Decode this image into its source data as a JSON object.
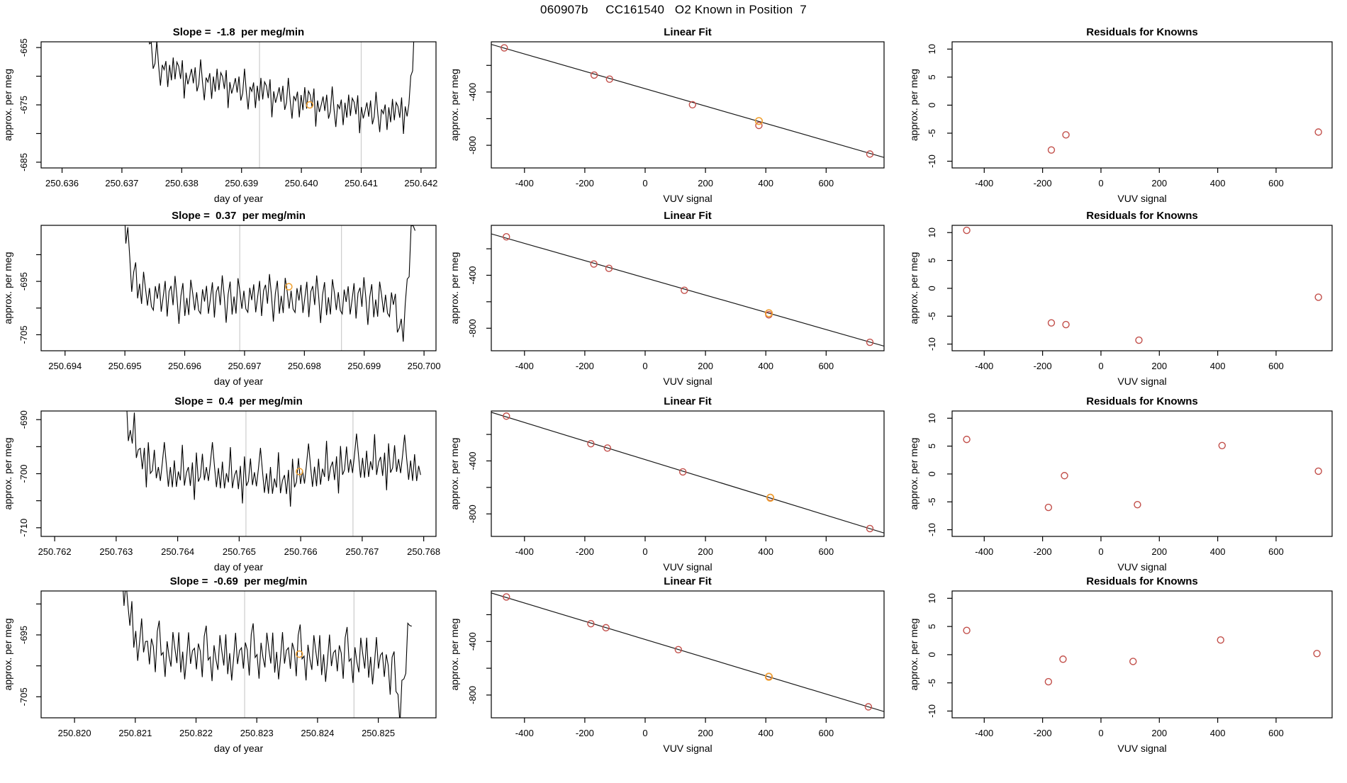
{
  "header": {
    "title": "060907b     CC161540   O2 Known in Position  7"
  },
  "axis": {
    "x_timeseries": "day of year",
    "x_signal": "VUV signal",
    "y": "approx. per meg"
  },
  "colors": {
    "series": "#000000",
    "fit_line": "#1a1a1a",
    "known_point": "#C24F4A",
    "highlight_point": "#F0A030",
    "marker_line": "#CCCCCC"
  },
  "chart_data": {
    "patterns": {
      "P1": [
        0.1,
        1.4,
        -0.9,
        0.6,
        -1.6,
        0.3,
        1.8,
        -0.3,
        -1.9,
        1.0,
        -0.6,
        1.3,
        -1.2,
        0.5,
        -1.1,
        1.7,
        -1.5,
        0.7,
        0.1,
        -1.3,
        0.9,
        -1.7,
        1.1,
        -0.4
      ],
      "P2": [
        -0.2,
        1.1,
        -1.4,
        1.6,
        -0.5,
        -1.8,
        0.8,
        1.9,
        -1.0,
        0.4,
        -1.6,
        1.2,
        0.2,
        -0.9,
        1.5,
        -0.3,
        -1.2,
        1.8,
        -0.7,
        0.9,
        -1.9,
        0.6,
        1.3,
        -1.1
      ]
    },
    "rows": [
      {
        "timeseries": {
          "type": "line",
          "title": "Slope =  -1.8  per meg/min",
          "slope": -1.8,
          "xlabel": "day of year",
          "ylabel": "approx. per meg",
          "xlim": [
            250.63565,
            250.64225
          ],
          "ylim": [
            -686,
            -664
          ],
          "xticks": [
            250.636,
            250.637,
            250.638,
            250.639,
            250.64,
            250.641,
            250.642
          ],
          "yticks_major": [
            -665,
            -675,
            -685
          ],
          "yticks_minor": [
            -670,
            -680
          ],
          "marker_lines": [
            250.6393,
            250.641
          ],
          "highlight": {
            "x": 250.64014,
            "y": -675.0
          },
          "series": {
            "x0": 250.6374,
            "x1": 250.64195,
            "n": 150,
            "amp": 1.7,
            "phase": 0,
            "pattern": "P1",
            "trend": [
              [
                0,
                -658
              ],
              [
                0.02,
                -666
              ],
              [
                0.06,
                -668.5
              ],
              [
                0.15,
                -670
              ],
              [
                0.3,
                -671.5
              ],
              [
                0.5,
                -673.5
              ],
              [
                0.65,
                -675
              ],
              [
                0.8,
                -676
              ],
              [
                0.93,
                -676.5
              ],
              [
                0.965,
                -675.5
              ],
              [
                0.98,
                -668
              ],
              [
                1,
                -652
              ]
            ]
          }
        },
        "linear_fit": {
          "type": "scatter",
          "title": "Linear Fit",
          "xlabel": "VUV signal",
          "ylabel": "approx. per meg",
          "xlim": [
            -510,
            792
          ],
          "ylim": [
            -970,
            -23
          ],
          "xticks": [
            -400,
            -200,
            0,
            200,
            400,
            600
          ],
          "yticks_major": [
            -400,
            -800
          ],
          "yticks_minor": [
            -200,
            -600
          ],
          "line": {
            "intercept": -375,
            "slope": -0.652
          },
          "points": [
            {
              "x": -467,
              "r": 2
            },
            {
              "x": -169,
              "r": -8
            },
            {
              "x": -118,
              "r": -5.3
            },
            {
              "x": 157,
              "r": -18
            },
            {
              "x": 377,
              "r": -30
            },
            {
              "x": 745,
              "r": -4.8
            }
          ],
          "highlight": {
            "x": 377,
            "r": 3
          }
        },
        "residuals": {
          "type": "scatter",
          "title": "Residuals for Knowns",
          "xlabel": "VUV signal",
          "ylabel": "approx. per meg",
          "xlim": [
            -510,
            792
          ],
          "ylim": [
            -11.2,
            11.3
          ],
          "xticks": [
            -400,
            -200,
            0,
            200,
            400,
            600
          ],
          "yticks_major": [
            -10,
            -5,
            0,
            5,
            10
          ],
          "yticks_minor": [],
          "points": [
            {
              "x": -170,
              "y": -8.0
            },
            {
              "x": -120,
              "y": -5.3
            },
            {
              "x": 745,
              "y": -4.8
            }
          ]
        }
      },
      {
        "timeseries": {
          "type": "line",
          "title": "Slope =  0.37  per meg/min",
          "slope": 0.37,
          "xlabel": "day of year",
          "ylabel": "approx. per meg",
          "xlim": [
            250.6936,
            250.7002
          ],
          "ylim": [
            -708,
            -684.5
          ],
          "xticks": [
            250.694,
            250.695,
            250.696,
            250.697,
            250.698,
            250.699,
            250.7
          ],
          "yticks_major": [
            -695,
            -705
          ],
          "yticks_minor": [
            -690,
            -700
          ],
          "marker_lines": [
            250.69692,
            250.69862
          ],
          "highlight": {
            "x": 250.69774,
            "y": -696.0
          },
          "series": {
            "x0": 250.69495,
            "x1": 250.69985,
            "n": 150,
            "amp": 2.0,
            "phase": 0,
            "pattern": "P2",
            "trend": [
              [
                0,
                -676
              ],
              [
                0.015,
                -688
              ],
              [
                0.04,
                -694
              ],
              [
                0.08,
                -697.5
              ],
              [
                0.2,
                -698.5
              ],
              [
                0.5,
                -698
              ],
              [
                0.8,
                -698.5
              ],
              [
                0.93,
                -699
              ],
              [
                0.952,
                -705.5
              ],
              [
                0.968,
                -700
              ],
              [
                1,
                -681
              ]
            ]
          }
        },
        "linear_fit": {
          "type": "scatter",
          "title": "Linear Fit",
          "xlabel": "VUV signal",
          "ylabel": "approx. per meg",
          "xlim": [
            -510,
            792
          ],
          "ylim": [
            -970,
            -23
          ],
          "xticks": [
            -400,
            -200,
            0,
            200,
            400,
            600
          ],
          "yticks_major": [
            -400,
            -800
          ],
          "yticks_minor": [
            -200,
            -600
          ],
          "line": {
            "intercept": -419.5,
            "slope": -0.651
          },
          "points": [
            {
              "x": -460,
              "r": 10.4
            },
            {
              "x": -170,
              "r": -6.2
            },
            {
              "x": -120,
              "r": -6.5
            },
            {
              "x": 130,
              "r": -9.3
            },
            {
              "x": 410,
              "r": -12
            },
            {
              "x": 745,
              "r": -1.6
            }
          ],
          "highlight": {
            "x": 410,
            "r": 0
          }
        },
        "residuals": {
          "type": "scatter",
          "title": "Residuals for Knowns",
          "xlabel": "VUV signal",
          "ylabel": "approx. per meg",
          "xlim": [
            -510,
            792
          ],
          "ylim": [
            -11.2,
            11.3
          ],
          "xticks": [
            -400,
            -200,
            0,
            200,
            400,
            600
          ],
          "yticks_major": [
            -10,
            -5,
            0,
            5,
            10
          ],
          "yticks_minor": [],
          "points": [
            {
              "x": -460,
              "y": 10.4
            },
            {
              "x": -170,
              "y": -6.2
            },
            {
              "x": -120,
              "y": -6.5
            },
            {
              "x": 130,
              "y": -9.3
            },
            {
              "x": 745,
              "y": -1.6
            }
          ]
        }
      },
      {
        "timeseries": {
          "type": "line",
          "title": "Slope =  0.4  per meg/min",
          "slope": 0.4,
          "xlabel": "day of year",
          "ylabel": "approx. per meg",
          "xlim": [
            250.76178,
            250.7682
          ],
          "ylim": [
            -711.6,
            -688.4
          ],
          "xticks": [
            250.762,
            250.763,
            250.764,
            250.765,
            250.766,
            250.767,
            250.768
          ],
          "yticks_major": [
            -690,
            -700,
            -710
          ],
          "yticks_minor": [
            -695,
            -705
          ],
          "marker_lines": [
            250.76511,
            250.76685
          ],
          "highlight": {
            "x": 250.76598,
            "y": -699.6
          },
          "series": {
            "x0": 250.7631,
            "x1": 250.76795,
            "n": 150,
            "amp": 2.2,
            "phase": 9,
            "pattern": "P1",
            "trend": [
              [
                0,
                -682
              ],
              [
                0.02,
                -691
              ],
              [
                0.06,
                -696
              ],
              [
                0.12,
                -699.5
              ],
              [
                0.3,
                -699.5
              ],
              [
                0.45,
                -700.5
              ],
              [
                0.55,
                -701
              ],
              [
                0.7,
                -698.5
              ],
              [
                0.85,
                -697.5
              ],
              [
                1,
                -698.5
              ]
            ]
          }
        },
        "linear_fit": {
          "type": "scatter",
          "title": "Linear Fit",
          "xlabel": "VUV signal",
          "ylabel": "approx. per meg",
          "xlim": [
            -510,
            792
          ],
          "ylim": [
            -970,
            -23
          ],
          "xticks": [
            -400,
            -200,
            0,
            200,
            400,
            600
          ],
          "yticks_major": [
            -400,
            -800
          ],
          "yticks_minor": [
            -200,
            -600
          ],
          "line": {
            "intercept": -390,
            "slope": -0.7
          },
          "points": [
            {
              "x": -460,
              "r": 6.2
            },
            {
              "x": -180,
              "r": -6.0
            },
            {
              "x": -125,
              "r": -0.3
            },
            {
              "x": 125,
              "r": -5.5
            },
            {
              "x": 415,
              "r": 5.1
            },
            {
              "x": 745,
              "r": 0.5
            }
          ],
          "highlight": {
            "x": 415,
            "r": 2
          }
        },
        "residuals": {
          "type": "scatter",
          "title": "Residuals for Knowns",
          "xlabel": "VUV signal",
          "ylabel": "approx. per meg",
          "xlim": [
            -510,
            792
          ],
          "ylim": [
            -11.2,
            11.3
          ],
          "xticks": [
            -400,
            -200,
            0,
            200,
            400,
            600
          ],
          "yticks_major": [
            -10,
            -5,
            0,
            5,
            10
          ],
          "yticks_minor": [],
          "points": [
            {
              "x": -460,
              "y": 6.2
            },
            {
              "x": -180,
              "y": -6.0
            },
            {
              "x": -125,
              "y": -0.3
            },
            {
              "x": 125,
              "y": -5.5
            },
            {
              "x": 415,
              "y": 5.1
            },
            {
              "x": 745,
              "y": 0.5
            }
          ]
        }
      },
      {
        "timeseries": {
          "type": "line",
          "title": "Slope =  -0.69  per meg/min",
          "slope": -0.69,
          "xlabel": "day of year",
          "ylabel": "approx. per meg",
          "xlim": [
            250.81945,
            250.82595
          ],
          "ylim": [
            -708.4,
            -687.9
          ],
          "xticks": [
            250.82,
            250.821,
            250.822,
            250.823,
            250.824,
            250.825
          ],
          "yticks_major": [
            -695,
            -705
          ],
          "yticks_minor": [
            -690,
            -700
          ],
          "marker_lines": [
            250.8228,
            250.8246
          ],
          "highlight": {
            "x": 250.8237,
            "y": -698.1
          },
          "series": {
            "x0": 250.82075,
            "x1": 250.82555,
            "n": 150,
            "amp": 2.0,
            "phase": 11,
            "pattern": "P2",
            "trend": [
              [
                0,
                -680
              ],
              [
                0.015,
                -689
              ],
              [
                0.05,
                -694.5
              ],
              [
                0.1,
                -697.5
              ],
              [
                0.3,
                -698.5
              ],
              [
                0.5,
                -698
              ],
              [
                0.7,
                -698.5
              ],
              [
                0.9,
                -699
              ],
              [
                0.935,
                -702
              ],
              [
                0.962,
                -705.8
              ],
              [
                0.985,
                -697
              ],
              [
                1,
                -692
              ]
            ]
          }
        },
        "linear_fit": {
          "type": "scatter",
          "title": "Linear Fit",
          "xlabel": "VUV signal",
          "ylabel": "approx. per meg",
          "xlim": [
            -510,
            792
          ],
          "ylim": [
            -970,
            -23
          ],
          "xticks": [
            -400,
            -200,
            0,
            200,
            400,
            600
          ],
          "yticks_major": [
            -400,
            -800
          ],
          "yticks_minor": [
            -200,
            -600
          ],
          "line": {
            "intercept": -385,
            "slope": -0.68
          },
          "points": [
            {
              "x": -460,
              "r": 4.3
            },
            {
              "x": -180,
              "r": -4.8
            },
            {
              "x": -130,
              "r": -0.8
            },
            {
              "x": 110,
              "r": -1.2
            },
            {
              "x": 410,
              "r": 2.6
            },
            {
              "x": 740,
              "r": 0.2
            }
          ],
          "highlight": {
            "x": 410,
            "r": 0
          }
        },
        "residuals": {
          "type": "scatter",
          "title": "Residuals for Knowns",
          "xlabel": "VUV signal",
          "ylabel": "approx. per meg",
          "xlim": [
            -510,
            792
          ],
          "ylim": [
            -11.2,
            11.3
          ],
          "xticks": [
            -400,
            -200,
            0,
            200,
            400,
            600
          ],
          "yticks_major": [
            -10,
            -5,
            0,
            5,
            10
          ],
          "yticks_minor": [],
          "points": [
            {
              "x": -460,
              "y": 4.3
            },
            {
              "x": -180,
              "y": -4.8
            },
            {
              "x": -130,
              "y": -0.8
            },
            {
              "x": 110,
              "y": -1.2
            },
            {
              "x": 410,
              "y": 2.6
            },
            {
              "x": 740,
              "y": 0.2
            }
          ]
        }
      }
    ]
  }
}
